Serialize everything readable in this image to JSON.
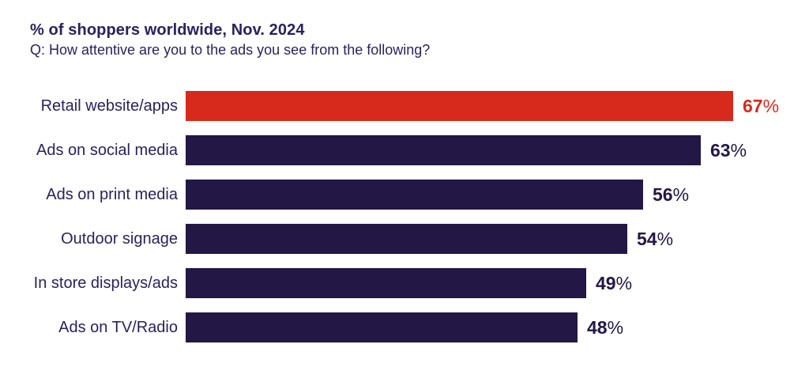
{
  "header": {
    "title": "% of shoppers worldwide, Nov. 2024",
    "subtitle": "Q: How attentive are you to the ads you see from the following?"
  },
  "colors": {
    "highlight_bar": "#d8291d",
    "default_bar": "#221745",
    "text": "#2b215e"
  },
  "chart_data": {
    "type": "bar",
    "orientation": "horizontal",
    "title": "% of shoppers worldwide, Nov. 2024",
    "subtitle": "Q: How attentive are you to the ads you see from the following?",
    "categories": [
      "Retail website/apps",
      "Ads on social media",
      "Ads on print media",
      "Outdoor signage",
      "In store displays/ads",
      "Ads on TV/Radio"
    ],
    "values": [
      67,
      63,
      56,
      54,
      49,
      48
    ],
    "value_suffix": "%",
    "bar_colors": [
      "#d8291d",
      "#221745",
      "#221745",
      "#221745",
      "#221745",
      "#221745"
    ],
    "value_label_colors": [
      "#d8291d",
      "#221745",
      "#221745",
      "#221745",
      "#221745",
      "#221745"
    ],
    "xlim": [
      0,
      67
    ],
    "grid": false,
    "axes_visible": false,
    "legend": "none",
    "data_labels": "outside-end"
  }
}
